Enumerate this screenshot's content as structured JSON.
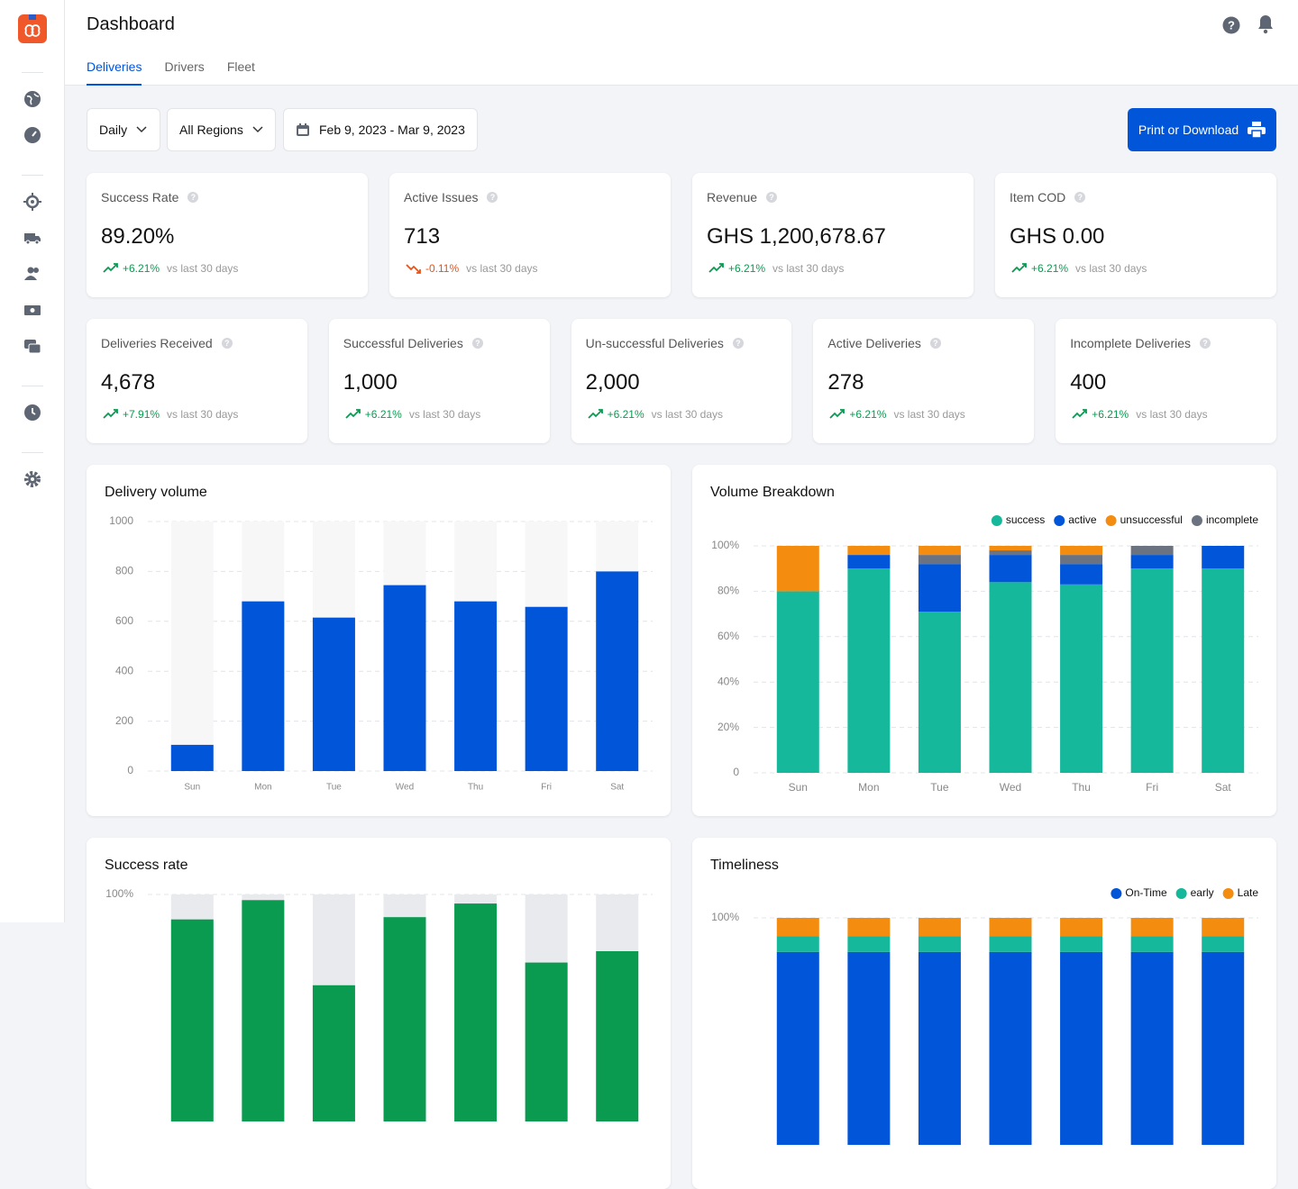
{
  "header": {
    "title": "Dashboard"
  },
  "tabs": [
    "Deliveries",
    "Drivers",
    "Fleet"
  ],
  "filters": {
    "period": "Daily",
    "region": "All Regions",
    "date_range": "Feb 9, 2023 - Mar 9, 2023"
  },
  "action": "Print or Download",
  "kpi_cards": [
    {
      "label": "Success Rate",
      "value": "89.20%",
      "change": "+6.21%",
      "comparison": "vs last 30 days"
    },
    {
      "label": "Active Issues",
      "value": "713",
      "change": "-0.11%",
      "comparison": "vs last 30 days"
    },
    {
      "label": "Revenue",
      "value": "GHS 1,200,678.67",
      "change": "+6.21%",
      "comparison": "vs last 30 days"
    },
    {
      "label": "Item COD",
      "value": "GHS 0.00",
      "change": "+6.21%",
      "comparison": "vs last 30 days"
    }
  ],
  "delivery_cards": [
    {
      "label": "Deliveries Received",
      "value": "4,678",
      "change": "+7.91%",
      "comparison": "vs last 30 days"
    },
    {
      "label": "Successful Deliveries",
      "value": "1,000",
      "change": "+6.21%",
      "comparison": "vs last 30 days"
    },
    {
      "label": "Un-successful Deliveries",
      "value": "2,000",
      "change": "+6.21%",
      "comparison": "vs last 30 days"
    },
    {
      "label": "Active Deliveries",
      "value": "278",
      "change": "+6.21%",
      "comparison": "vs last 30 days"
    },
    {
      "label": "Incomplete Deliveries",
      "value": "400",
      "change": "+6.21%",
      "comparison": "vs last 30 days"
    }
  ],
  "chart_data": [
    {
      "type": "bar",
      "title": "Delivery volume",
      "categories": [
        "Sun",
        "Mon",
        "Tue",
        "Wed",
        "Thu",
        "Fri",
        "Sat"
      ],
      "values": [
        105,
        680,
        615,
        745,
        680,
        658,
        800
      ],
      "color": "#0055d9",
      "track_color": "#f7f7f8",
      "ylim": [
        0,
        1000
      ],
      "yticks": [
        0,
        200,
        400,
        600,
        800,
        1000
      ],
      "grid": true
    },
    {
      "type": "stacked_bar",
      "title": "Volume Breakdown",
      "categories": [
        "Sun",
        "Mon",
        "Tue",
        "Wed",
        "Thu",
        "Fri",
        "Sat"
      ],
      "series": [
        {
          "name": "success",
          "color": "#16b89c",
          "values": [
            80,
            90,
            71,
            84,
            83,
            90,
            90
          ]
        },
        {
          "name": "active",
          "color": "#0055d9",
          "values": [
            0,
            6,
            21,
            12,
            9,
            6,
            10
          ]
        },
        {
          "name": "unsuccessful",
          "color": "#f48c0f",
          "values": [
            20,
            4,
            4,
            2,
            4,
            0,
            0
          ]
        },
        {
          "name": "incomplete",
          "color": "#6b7280",
          "values": [
            0,
            0,
            4,
            2,
            4,
            4,
            0
          ]
        }
      ],
      "legend": "top-right",
      "ylim": [
        0,
        100
      ],
      "yticks": [
        0,
        {
          "value": 20,
          "label": "20%"
        },
        {
          "value": 40,
          "label": "40%"
        },
        {
          "value": 60,
          "label": "60%"
        },
        {
          "value": 80,
          "label": "80%"
        },
        {
          "value": 100,
          "label": "100%"
        }
      ],
      "grid": true
    },
    {
      "type": "bar",
      "title": "Success rate",
      "categories": [
        null,
        null,
        null,
        null,
        null,
        null,
        null
      ],
      "values": [
        89,
        97.5,
        60,
        90,
        96,
        70,
        75
      ],
      "color": "#0a9b50",
      "track_color": "#e9eaee",
      "ylim": [
        0,
        100
      ],
      "yticks": [
        {
          "value": 100,
          "label": "100%"
        }
      ],
      "grid": true
    },
    {
      "type": "stacked_bar",
      "title": "Timeliness",
      "categories": [
        null,
        null,
        null,
        null,
        null,
        null,
        null
      ],
      "series": [
        {
          "name": "On-Time",
          "color": "#0055d9",
          "values": [
            85,
            85,
            85,
            85,
            85,
            85,
            85
          ]
        },
        {
          "name": "early",
          "color": "#16b89c",
          "values": [
            7,
            7,
            7,
            7,
            7,
            7,
            7
          ]
        },
        {
          "name": "Late",
          "color": "#f48c0f",
          "values": [
            8,
            8,
            8,
            8,
            8,
            8,
            8
          ]
        }
      ],
      "legend": "top-right",
      "ylim": [
        0,
        100
      ],
      "yticks": [
        {
          "value": 100,
          "label": "100%"
        }
      ],
      "grid": true
    }
  ]
}
